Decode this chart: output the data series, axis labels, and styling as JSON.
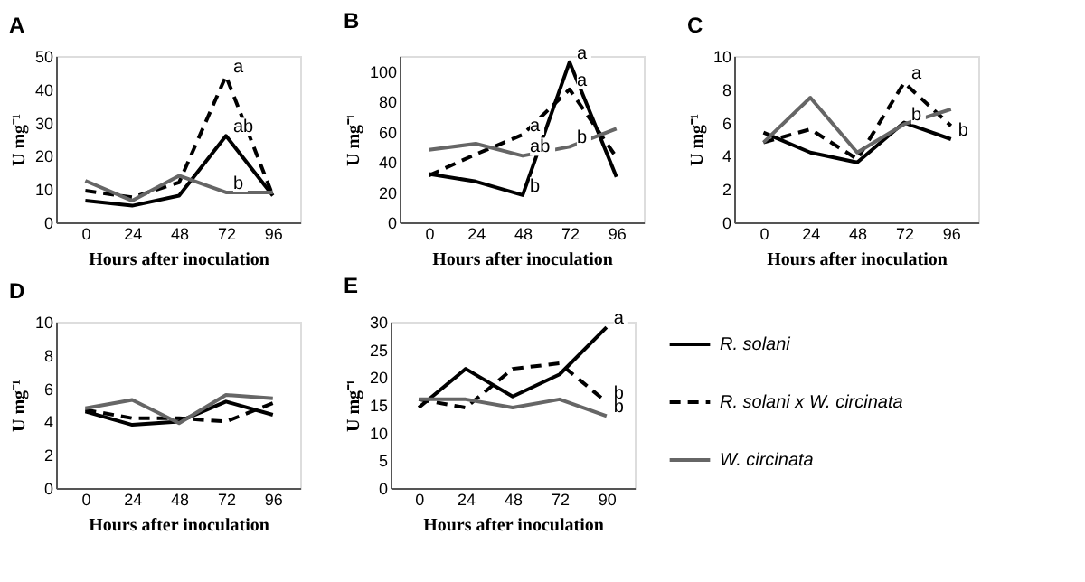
{
  "chart_data": [
    {
      "type": "line",
      "title": "A",
      "xlabel": "Hours after inoculation",
      "ylabel": "U mg⁻¹",
      "x": [
        0,
        24,
        48,
        72,
        96
      ],
      "xlim": [
        -15,
        110
      ],
      "xticks": [
        0,
        24,
        48,
        72,
        96
      ],
      "ylim": [
        0,
        50
      ],
      "yticks": [
        0,
        10,
        20,
        30,
        40,
        50
      ],
      "grid": false,
      "legend": false,
      "series": [
        {
          "color": "#000000",
          "line_style": "solid",
          "values": [
            6.5,
            5,
            8,
            26,
            8
          ]
        },
        {
          "color": "#000000",
          "line_style": "dashed",
          "values": [
            9.5,
            7.5,
            12,
            44,
            8
          ]
        },
        {
          "color": "#666666",
          "line_style": "solid",
          "values": [
            12.5,
            6.5,
            14,
            9,
            9
          ]
        }
      ],
      "annotations": [
        {
          "text": "a",
          "x": 72,
          "y": 44
        },
        {
          "text": "ab",
          "x": 72,
          "y": 26
        },
        {
          "text": "b",
          "x": 72,
          "y": 9
        }
      ]
    },
    {
      "type": "line",
      "title": "B",
      "xlabel": "Hours after inoculation",
      "ylabel": "U mg⁻¹",
      "x": [
        0,
        24,
        48,
        72,
        96
      ],
      "xlim": [
        -15,
        110
      ],
      "xticks": [
        0,
        24,
        48,
        72,
        96
      ],
      "ylim": [
        0,
        110
      ],
      "yticks": [
        0,
        20,
        40,
        60,
        80,
        100
      ],
      "grid": false,
      "legend": false,
      "series": [
        {
          "color": "#000000",
          "line_style": "solid",
          "values": [
            32,
            27,
            18,
            106,
            30
          ]
        },
        {
          "color": "#000000",
          "line_style": "dashed",
          "values": [
            31,
            45,
            58,
            88,
            43
          ]
        },
        {
          "color": "#666666",
          "line_style": "solid",
          "values": [
            48,
            52,
            44,
            50,
            62
          ]
        }
      ],
      "annotations": [
        {
          "text": "a",
          "x": 72,
          "y": 106
        },
        {
          "text": "a",
          "x": 72,
          "y": 88
        },
        {
          "text": "a",
          "x": 48,
          "y": 58
        },
        {
          "text": "ab",
          "x": 48,
          "y": 44
        },
        {
          "text": "b",
          "x": 48,
          "y": 18
        },
        {
          "text": "b",
          "x": 72,
          "y": 50
        }
      ]
    },
    {
      "type": "line",
      "title": "C",
      "xlabel": "Hours after inoculation",
      "ylabel": "U mg⁻¹",
      "x": [
        0,
        24,
        48,
        72,
        96
      ],
      "xlim": [
        -15,
        110
      ],
      "xticks": [
        0,
        24,
        48,
        72,
        96
      ],
      "ylim": [
        0,
        10
      ],
      "yticks": [
        0,
        2,
        4,
        6,
        8,
        10
      ],
      "grid": false,
      "legend": false,
      "series": [
        {
          "color": "#000000",
          "line_style": "solid",
          "values": [
            5.4,
            4.2,
            3.6,
            6,
            5
          ]
        },
        {
          "color": "#000000",
          "line_style": "dashed",
          "values": [
            4.8,
            5.6,
            3.8,
            8.4,
            5.8
          ]
        },
        {
          "color": "#666666",
          "line_style": "solid",
          "values": [
            4.8,
            7.5,
            4.2,
            5.9,
            6.8
          ]
        }
      ],
      "annotations": [
        {
          "text": "a",
          "x": 72,
          "y": 8.4
        },
        {
          "text": "b",
          "x": 72,
          "y": 5.9
        },
        {
          "text": "b",
          "x": 96,
          "y": 5
        }
      ]
    },
    {
      "type": "line",
      "title": "D",
      "xlabel": "Hours after inoculation",
      "ylabel": "U mg⁻¹",
      "x": [
        0,
        24,
        48,
        72,
        96
      ],
      "xlim": [
        -15,
        110
      ],
      "xticks": [
        0,
        24,
        48,
        72,
        96
      ],
      "ylim": [
        0,
        10
      ],
      "yticks": [
        0,
        2,
        4,
        6,
        8,
        10
      ],
      "grid": false,
      "legend": false,
      "series": [
        {
          "color": "#000000",
          "line_style": "solid",
          "values": [
            4.6,
            3.8,
            4,
            5.2,
            4.4
          ]
        },
        {
          "color": "#000000",
          "line_style": "dashed",
          "values": [
            4.7,
            4.2,
            4.2,
            4,
            5.1
          ]
        },
        {
          "color": "#666666",
          "line_style": "solid",
          "values": [
            4.8,
            5.3,
            3.9,
            5.6,
            5.4
          ]
        }
      ]
    },
    {
      "type": "line",
      "title": "E",
      "xlabel": "Hours after inoculation",
      "ylabel": "U mg⁻¹",
      "categories": [
        "0",
        "24",
        "48",
        "72",
        "90"
      ],
      "ylim": [
        0,
        30
      ],
      "yticks": [
        0,
        5,
        10,
        15,
        20,
        25,
        30
      ],
      "grid": false,
      "legend": "right",
      "series": [
        {
          "name": "R. solani",
          "color": "#000000",
          "line_style": "solid",
          "values": [
            14.5,
            21.5,
            16.5,
            20.5,
            29
          ]
        },
        {
          "name": "R. solani x W. circinata",
          "color": "#000000",
          "line_style": "dashed",
          "values": [
            16,
            14.5,
            21.5,
            22.5,
            15.5
          ]
        },
        {
          "name": "W. circinata",
          "color": "#666666",
          "line_style": "solid",
          "values": [
            16,
            16,
            14.5,
            16,
            13
          ]
        }
      ],
      "annotations": [
        {
          "text": "a",
          "x": "90",
          "y": 29
        },
        {
          "text": "b",
          "x": "90",
          "y": 15.5
        },
        {
          "text": "b",
          "x": "90",
          "y": 13
        }
      ]
    }
  ]
}
